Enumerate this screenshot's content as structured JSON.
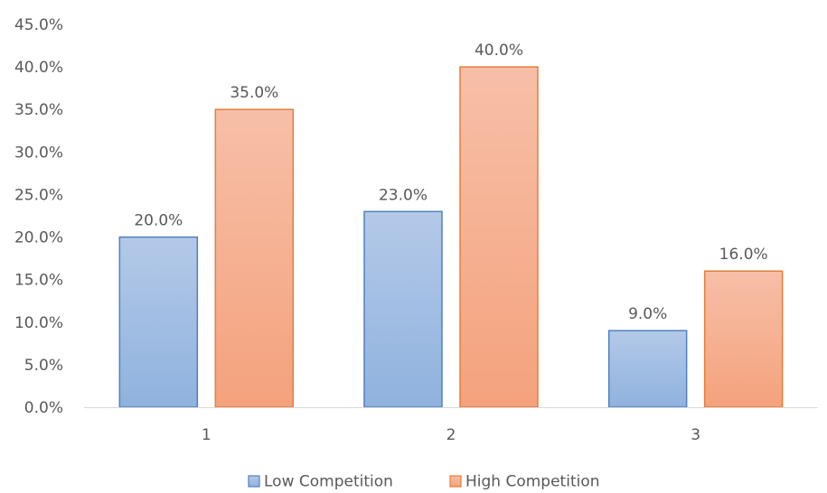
{
  "chart_data": {
    "type": "bar",
    "categories": [
      "1",
      "2",
      "3"
    ],
    "series": [
      {
        "name": "Low Competition",
        "values": [
          20.0,
          23.0,
          9.0
        ]
      },
      {
        "name": "High Competition",
        "values": [
          35.0,
          40.0,
          16.0
        ]
      }
    ],
    "value_labels": [
      [
        "20.0%",
        "23.0%",
        "9.0%"
      ],
      [
        "35.0%",
        "40.0%",
        "16.0%"
      ]
    ],
    "y_ticks": [
      "0.0%",
      "5.0%",
      "10.0%",
      "15.0%",
      "20.0%",
      "25.0%",
      "30.0%",
      "35.0%",
      "40.0%",
      "45.0%"
    ],
    "ylim": [
      0,
      45
    ],
    "title": "",
    "xlabel": "",
    "ylabel": "",
    "grid": false,
    "legend_position": "bottom-center",
    "colors": {
      "low_fill_top": "#b4c9e8",
      "low_fill_bottom": "#8fb2de",
      "low_stroke": "#4f81bd",
      "high_fill_top": "#f7bfa8",
      "high_fill_bottom": "#f4a27c",
      "high_stroke": "#e67e3a",
      "axis": "#d9d9d9",
      "text": "#595959"
    }
  }
}
